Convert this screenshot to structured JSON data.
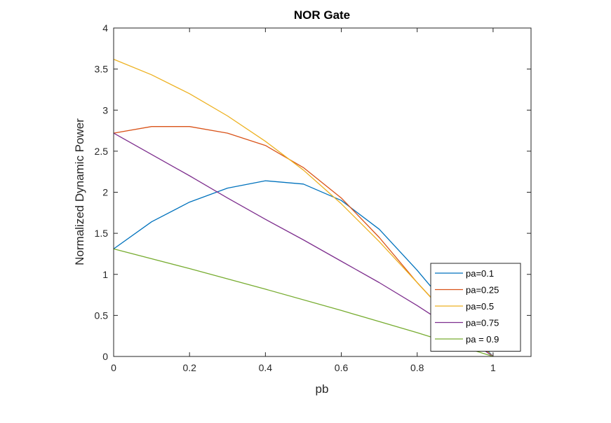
{
  "chart_data": {
    "type": "line",
    "title": "NOR Gate",
    "xlabel": "pb",
    "ylabel": "Normalized Dynamic Power",
    "xlim": [
      0,
      1.1
    ],
    "ylim": [
      0,
      4
    ],
    "xticks": [
      "0",
      "0.2",
      "0.4",
      "0.6",
      "0.8",
      "1"
    ],
    "xtick_values": [
      0,
      0.2,
      0.4,
      0.6,
      0.8,
      1
    ],
    "yticks": [
      "0",
      "0.5",
      "1",
      "1.5",
      "2",
      "2.5",
      "3",
      "3.5",
      "4"
    ],
    "ytick_values": [
      0,
      0.5,
      1,
      1.5,
      2,
      2.5,
      3,
      3.5,
      4
    ],
    "grid": false,
    "legend_position": "bottom-right",
    "series": [
      {
        "name": "pa=0.1",
        "color": "#0072BD",
        "x": [
          0,
          0.1,
          0.2,
          0.3,
          0.4,
          0.5,
          0.6,
          0.7,
          0.8,
          0.9,
          1.0
        ],
        "y": [
          1.31,
          1.64,
          1.88,
          2.05,
          2.14,
          2.1,
          1.9,
          1.55,
          1.05,
          0.5,
          0.0
        ]
      },
      {
        "name": "pa=0.25",
        "color": "#D95319",
        "x": [
          0,
          0.1,
          0.2,
          0.3,
          0.4,
          0.5,
          0.6,
          0.7,
          0.8,
          0.9,
          1.0
        ],
        "y": [
          2.72,
          2.8,
          2.8,
          2.72,
          2.57,
          2.3,
          1.93,
          1.45,
          0.9,
          0.4,
          0.0
        ]
      },
      {
        "name": "pa=0.5",
        "color": "#EDB120",
        "x": [
          0,
          0.1,
          0.2,
          0.3,
          0.4,
          0.5,
          0.6,
          0.7,
          0.8,
          0.9,
          1.0
        ],
        "y": [
          3.62,
          3.43,
          3.2,
          2.93,
          2.62,
          2.27,
          1.86,
          1.4,
          0.9,
          0.4,
          0.0
        ]
      },
      {
        "name": "pa=0.75",
        "color": "#7E2F8E",
        "x": [
          0,
          0.1,
          0.2,
          0.3,
          0.4,
          0.5,
          0.6,
          0.7,
          0.8,
          0.9,
          1.0
        ],
        "y": [
          2.72,
          2.46,
          2.2,
          1.93,
          1.67,
          1.42,
          1.16,
          0.9,
          0.62,
          0.32,
          0.0
        ]
      },
      {
        "name": "pa = 0.9",
        "color": "#77AC30",
        "x": [
          0,
          0.2,
          0.4,
          0.6,
          0.8,
          1.0
        ],
        "y": [
          1.31,
          1.07,
          0.82,
          0.56,
          0.29,
          0.0
        ]
      }
    ]
  }
}
